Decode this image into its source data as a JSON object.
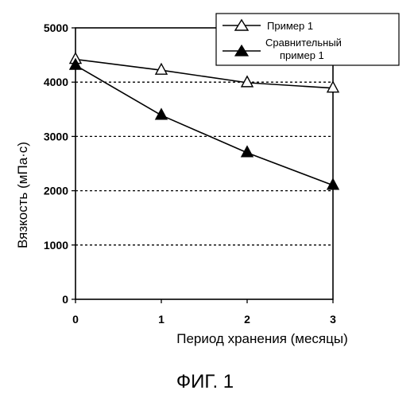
{
  "chart_data": {
    "type": "line",
    "x": [
      0,
      1,
      2,
      3
    ],
    "xlabel": "Период хранения (месяцы)",
    "ylabel": "Вязкость (мПа·с)",
    "xlim": [
      0,
      3
    ],
    "ylim": [
      0,
      5000
    ],
    "x_ticks": [
      "0",
      "1",
      "2",
      "3"
    ],
    "y_ticks": [
      "0",
      "1000",
      "2000",
      "3000",
      "4000",
      "5000"
    ],
    "grid": "dashed horizontal at 1000, 2000, 3000, 4000",
    "legend_placement": "top-right",
    "series": [
      {
        "name": "Пример 1",
        "marker": "open-triangle",
        "values": [
          4420,
          4220,
          3990,
          3890
        ]
      },
      {
        "name": "Сравнительный пример 1",
        "name_lines": [
          "Сравнительный",
          "пример 1"
        ],
        "marker": "filled-triangle",
        "values": [
          4310,
          3390,
          2700,
          2100
        ]
      }
    ]
  },
  "caption": "ФИГ. 1"
}
